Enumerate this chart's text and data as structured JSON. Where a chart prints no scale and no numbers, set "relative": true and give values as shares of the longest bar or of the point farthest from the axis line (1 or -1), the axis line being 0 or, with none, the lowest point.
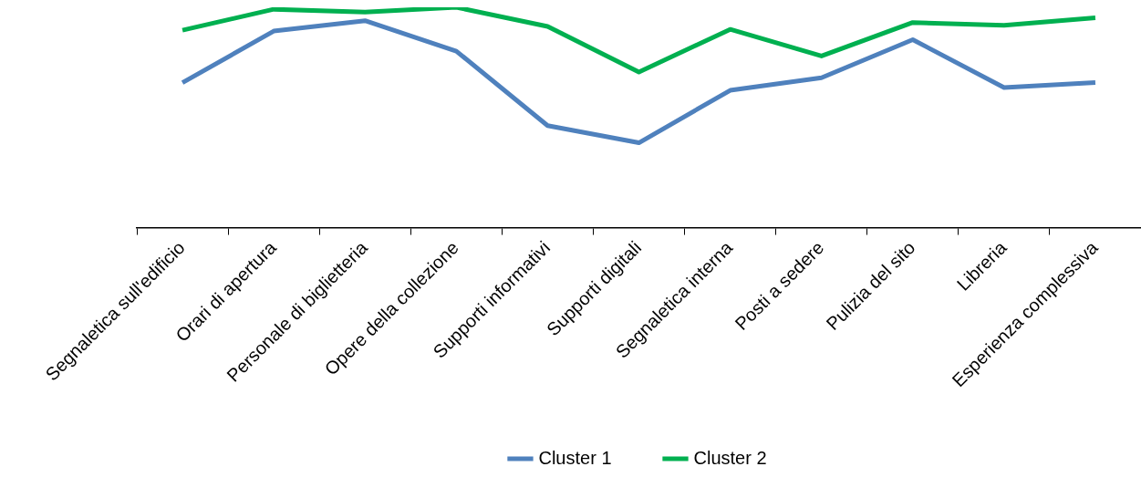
{
  "chart_data": {
    "type": "line",
    "relative": true,
    "legend": "bottom",
    "grid": false,
    "categories": [
      "Segnaletica sull'edificio",
      "Orari di apertura",
      "Personale di biglietteria",
      "Opere della collezione",
      "Supporti informativi",
      "Supporti digitali",
      "Segnaletica interna",
      "Posti a sedere",
      "Pulizia del sito",
      "Libreria",
      "Esperienza complessiva"
    ],
    "series": [
      {
        "name": "Cluster 1",
        "color": "#4f81bd",
        "values": [
          0.658,
          0.892,
          0.939,
          0.801,
          0.463,
          0.385,
          0.623,
          0.68,
          0.853,
          0.636,
          0.658
        ]
      },
      {
        "name": "Cluster 2",
        "color": "#00b050",
        "values": [
          0.896,
          0.991,
          0.978,
          1,
          0.913,
          0.706,
          0.9,
          0.779,
          0.931,
          0.918,
          0.952
        ]
      }
    ]
  }
}
